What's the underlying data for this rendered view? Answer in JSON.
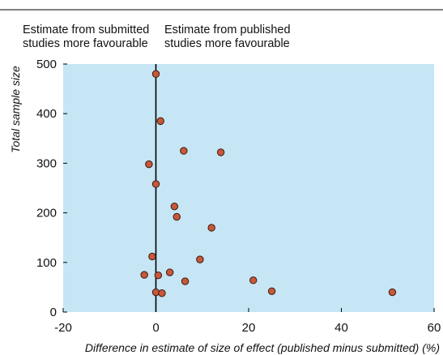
{
  "chart_data": {
    "type": "scatter",
    "title": "",
    "xlabel": "Difference in estimate of size of effect (published minus submitted) (%)",
    "ylabel": "Total sample size",
    "xlim": [
      -20,
      60
    ],
    "ylim": [
      0,
      500
    ],
    "xticks": [
      -20,
      0,
      20,
      40,
      60
    ],
    "yticks": [
      0,
      100,
      200,
      300,
      400,
      500
    ],
    "xtick_labels": [
      "-20",
      "0",
      "20",
      "40",
      "60"
    ],
    "ytick_labels": [
      "0",
      "100",
      "200",
      "300",
      "400",
      "500"
    ],
    "grid": false,
    "reference_line_x": 0,
    "annotations": {
      "left": [
        "Estimate from submitted",
        "studies more favourable"
      ],
      "right": [
        "Estimate from published",
        "studies more favourable"
      ]
    },
    "colors": {
      "plot_background": "#c6e6f5",
      "marker_fill": "#c8583a",
      "marker_stroke": "#3a1a10",
      "axis": "#000000"
    },
    "points": [
      {
        "x": 0,
        "y": 480
      },
      {
        "x": 1,
        "y": 385
      },
      {
        "x": 6,
        "y": 325
      },
      {
        "x": 14,
        "y": 322
      },
      {
        "x": -1.5,
        "y": 298
      },
      {
        "x": 0,
        "y": 258
      },
      {
        "x": 4,
        "y": 213
      },
      {
        "x": 4.5,
        "y": 192
      },
      {
        "x": 12,
        "y": 170
      },
      {
        "x": -0.8,
        "y": 112
      },
      {
        "x": 9.5,
        "y": 106
      },
      {
        "x": 3,
        "y": 80
      },
      {
        "x": -2.5,
        "y": 75
      },
      {
        "x": 0.5,
        "y": 74
      },
      {
        "x": 6.3,
        "y": 62
      },
      {
        "x": 21,
        "y": 64
      },
      {
        "x": 25,
        "y": 42
      },
      {
        "x": 51,
        "y": 40
      },
      {
        "x": 0,
        "y": 40
      },
      {
        "x": 1.3,
        "y": 38
      }
    ]
  }
}
